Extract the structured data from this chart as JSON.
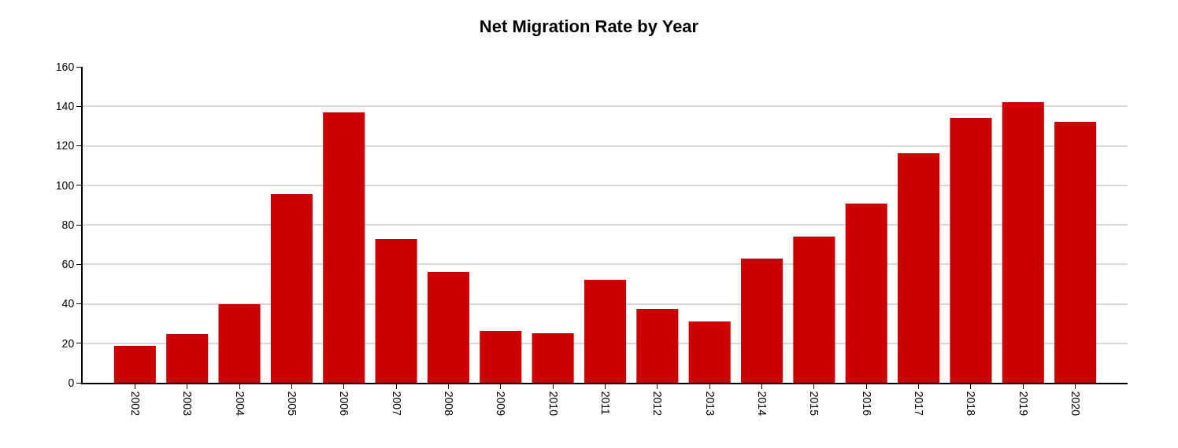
{
  "chart_data": {
    "type": "bar",
    "title": "Net Migration Rate by Year",
    "categories": [
      "2002",
      "2003",
      "2004",
      "2005",
      "2006",
      "2007",
      "2008",
      "2009",
      "2010",
      "2011",
      "2012",
      "2013",
      "2014",
      "2015",
      "2016",
      "2017",
      "2018",
      "2019",
      "2020"
    ],
    "values": [
      18.7,
      24.7,
      39.8,
      95.5,
      136.9,
      72.8,
      56.1,
      26.3,
      25.1,
      52.1,
      37.4,
      31.0,
      62.9,
      74.0,
      90.7,
      116.2,
      134.1,
      142.1,
      132.1
    ],
    "color": "#cc0000",
    "ylim": [
      0,
      160
    ],
    "yticks": [
      0,
      20,
      40,
      60,
      80,
      100,
      120,
      140,
      160
    ],
    "grid": "y"
  }
}
